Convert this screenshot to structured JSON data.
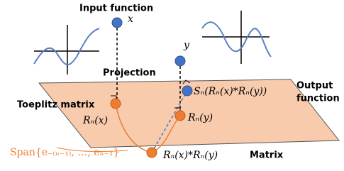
{
  "labels": {
    "input_function": "Input function",
    "x": "x",
    "y": "y",
    "projection": "Projection",
    "output_function_1": "Output",
    "output_function_2": "function",
    "toeplitz_matrix": "Toeplitz matrix",
    "rnx": "Rₙ(x)",
    "rny": "Rₙ(y)",
    "output": "Sₙ(Rₙ(x)*Rₙ(y))",
    "span": "Span{e₋₍ₙ₋₁₎, …, eₙ₋₁}",
    "product": "Rₙ(x)*Rₙ(y)",
    "matrix": "Matrix"
  }
}
